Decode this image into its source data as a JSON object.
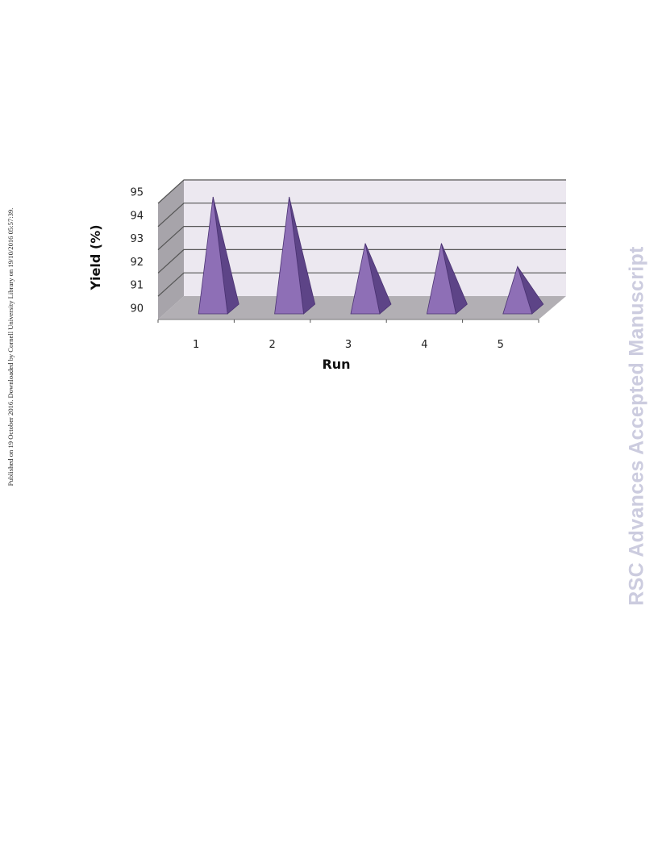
{
  "side_note": "Published on 19 October 2016. Downloaded by Cornell University Library on 19/10/2016 05:57:39.",
  "watermark": "RSC Advances Accepted Manuscript",
  "colors": {
    "pyramid_front": "#8e6fb6",
    "pyramid_side": "#5d4487",
    "pyramid_edge": "#4b3373",
    "wall": "#ece8f0",
    "side_wall": "#a7a4aa",
    "floor": "#b2afb4",
    "gridline": "#555555"
  },
  "chart_data": {
    "type": "bar",
    "style": "3d-pyramid",
    "title": "",
    "xlabel": "Run",
    "ylabel": "Yield (%)",
    "categories": [
      "1",
      "2",
      "3",
      "4",
      "5"
    ],
    "values": [
      95,
      95,
      93,
      93,
      92
    ],
    "ylim": [
      90,
      95
    ],
    "yticks": [
      "90",
      "91",
      "92",
      "93",
      "94",
      "95"
    ],
    "grid": true,
    "legend": "none"
  }
}
